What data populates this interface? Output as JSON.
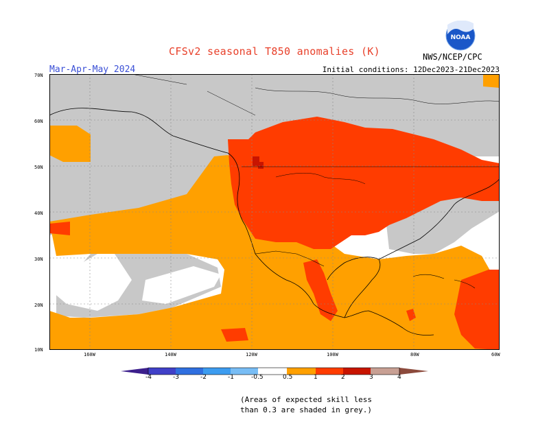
{
  "header": {
    "title": "CFSv2 seasonal T850 anomalies (K)",
    "season": "Mar-Apr-May 2024",
    "initial_conditions": "Initial conditions: 12Dec2023-21Dec2023",
    "agency": "NWS/NCEP/CPC",
    "logo_text": "NOAA"
  },
  "axes": {
    "latitude_labels": [
      "70N",
      "60N",
      "50N",
      "40N",
      "30N",
      "20N",
      "10N"
    ],
    "longitude_labels": [
      "160W",
      "140W",
      "120W",
      "100W",
      "80W",
      "60W"
    ]
  },
  "legend": {
    "ticks": [
      "-4",
      "-3",
      "-2",
      "-1",
      "-0.5",
      "0.5",
      "1",
      "2",
      "3",
      "4"
    ],
    "colors": {
      "lt_-4": "#3c1f8c",
      "-4_-3": "#4040c8",
      "-3_-2": "#2f6fe0",
      "-2_-1": "#3c9cf0",
      "-1_-0.5": "#78bdf5",
      "neutral": "#ffffff",
      "0.5_1": "#ffa000",
      "1_2": "#ff3c00",
      "2_3": "#c81400",
      "3_4": "#a01818",
      "gt_4": "#c8a094",
      "low_skill": "#c8c8c8"
    }
  },
  "footnote": {
    "line1": "(Areas of expected skill less",
    "line2": "than 0.3 are shaded in grey.)"
  }
}
